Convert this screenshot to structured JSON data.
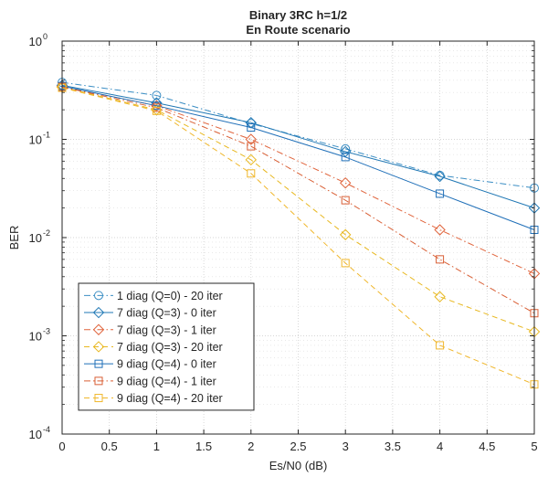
{
  "chart_data": {
    "type": "line",
    "title": [
      "Binary 3RC h=1/2",
      "En Route scenario"
    ],
    "xlabel": "Es/N0 (dB)",
    "ylabel": "BER",
    "xlim": [
      0,
      5
    ],
    "ylim": [
      0.0001,
      1
    ],
    "yscale": "log",
    "grid": true,
    "minor_grid": true,
    "legend_position": "bottom-left",
    "x_ticks": [
      0,
      0.5,
      1,
      1.5,
      2,
      2.5,
      3,
      3.5,
      4,
      4.5,
      5
    ],
    "x_tick_labels": [
      "0",
      "0.5",
      "1",
      "1.5",
      "2",
      "2.5",
      "3",
      "3.5",
      "4",
      "4.5",
      "5"
    ],
    "y_ticks": [
      {
        "value": 1,
        "base": "10",
        "exp": "0"
      },
      {
        "value": 0.1,
        "base": "10",
        "exp": "-1"
      },
      {
        "value": 0.01,
        "base": "10",
        "exp": "-2"
      },
      {
        "value": 0.001,
        "base": "10",
        "exp": "-3"
      },
      {
        "value": 0.0001,
        "base": "10",
        "exp": "-4"
      }
    ],
    "x": [
      0,
      1,
      2,
      3,
      4,
      5
    ],
    "series": [
      {
        "name": "1 diag (Q=0) - 20 iter",
        "color": "#3b8ec4",
        "dash": "dashdot",
        "marker": "circle",
        "values": [
          0.38,
          0.28,
          0.145,
          0.08,
          0.043,
          0.032
        ]
      },
      {
        "name": "7 diag (Q=3) - 0 iter",
        "color": "#1f77b4",
        "dash": "solid",
        "marker": "diamond",
        "values": [
          0.355,
          0.235,
          0.148,
          0.075,
          0.042,
          0.02
        ]
      },
      {
        "name": "7 diag (Q=3) - 1 iter",
        "color": "#e0643c",
        "dash": "dashdot",
        "marker": "diamond",
        "values": [
          0.345,
          0.22,
          0.1,
          0.036,
          0.012,
          0.0043
        ]
      },
      {
        "name": "7 diag (Q=3) - 20 iter",
        "color": "#e8b820",
        "dash": "dashed",
        "marker": "diamond",
        "values": [
          0.34,
          0.2,
          0.062,
          0.0107,
          0.0025,
          0.0011
        ]
      },
      {
        "name": "9 diag (Q=4) - 0 iter",
        "color": "#1f6fb8",
        "dash": "solid",
        "marker": "square",
        "values": [
          0.348,
          0.22,
          0.132,
          0.066,
          0.028,
          0.012
        ]
      },
      {
        "name": "9 diag (Q=4) - 1 iter",
        "color": "#d95f35",
        "dash": "dashdot",
        "marker": "square",
        "values": [
          0.342,
          0.21,
          0.085,
          0.024,
          0.006,
          0.0017
        ]
      },
      {
        "name": "9 diag (Q=4) - 20 iter",
        "color": "#f0b72c",
        "dash": "dashed",
        "marker": "square",
        "values": [
          0.335,
          0.195,
          0.045,
          0.0055,
          0.0008,
          0.00032
        ]
      }
    ]
  }
}
